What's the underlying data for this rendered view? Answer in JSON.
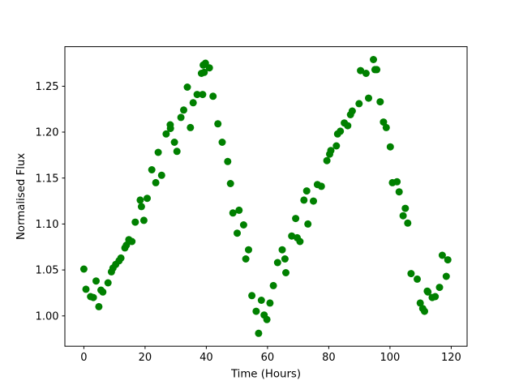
{
  "figure": {
    "background": "#ffffff",
    "plot_background": "#ffffff",
    "spine_color": "#000000"
  },
  "chart_data": {
    "type": "scatter",
    "title": "",
    "xlabel": "Time (Hours)",
    "ylabel": "Normalised Flux",
    "legend": null,
    "grid": false,
    "marker": "circle",
    "marker_color": "#008000",
    "marker_radius_px": 4.5,
    "xlim": [
      -6.2,
      125.2
    ],
    "ylim": [
      0.967,
      1.293
    ],
    "xticks": [
      0,
      20,
      40,
      60,
      80,
      100,
      120
    ],
    "yticks": [
      1.0,
      1.05,
      1.1,
      1.15,
      1.2,
      1.25
    ],
    "xtick_labels": [
      "0",
      "20",
      "40",
      "60",
      "80",
      "100",
      "120"
    ],
    "ytick_labels": [
      "1.00",
      "1.05",
      "1.10",
      "1.15",
      "1.20",
      "1.25"
    ],
    "points": [
      [
        0.0,
        1.051
      ],
      [
        0.7,
        1.029
      ],
      [
        2.2,
        1.021
      ],
      [
        3.1,
        1.02
      ],
      [
        4.0,
        1.038
      ],
      [
        4.9,
        1.01
      ],
      [
        5.6,
        1.028
      ],
      [
        6.2,
        1.026
      ],
      [
        7.9,
        1.036
      ],
      [
        9.0,
        1.048
      ],
      [
        9.5,
        1.052
      ],
      [
        10.4,
        1.056
      ],
      [
        11.5,
        1.06
      ],
      [
        12.1,
        1.063
      ],
      [
        13.4,
        1.074
      ],
      [
        13.9,
        1.077
      ],
      [
        14.7,
        1.083
      ],
      [
        15.7,
        1.081
      ],
      [
        16.8,
        1.102
      ],
      [
        18.4,
        1.126
      ],
      [
        18.8,
        1.119
      ],
      [
        19.6,
        1.104
      ],
      [
        20.7,
        1.128
      ],
      [
        22.2,
        1.159
      ],
      [
        23.5,
        1.145
      ],
      [
        24.3,
        1.178
      ],
      [
        25.4,
        1.153
      ],
      [
        26.9,
        1.198
      ],
      [
        28.2,
        1.208
      ],
      [
        28.3,
        1.204
      ],
      [
        29.6,
        1.189
      ],
      [
        30.4,
        1.179
      ],
      [
        31.7,
        1.216
      ],
      [
        32.6,
        1.224
      ],
      [
        33.8,
        1.249
      ],
      [
        34.8,
        1.205
      ],
      [
        35.7,
        1.232
      ],
      [
        37.0,
        1.241
      ],
      [
        38.4,
        1.264
      ],
      [
        38.8,
        1.241
      ],
      [
        39.0,
        1.273
      ],
      [
        39.3,
        1.265
      ],
      [
        39.7,
        1.275
      ],
      [
        41.0,
        1.27
      ],
      [
        42.2,
        1.239
      ],
      [
        43.8,
        1.209
      ],
      [
        45.2,
        1.189
      ],
      [
        47.0,
        1.168
      ],
      [
        47.9,
        1.144
      ],
      [
        48.7,
        1.112
      ],
      [
        50.1,
        1.09
      ],
      [
        50.7,
        1.115
      ],
      [
        52.2,
        1.099
      ],
      [
        52.9,
        1.062
      ],
      [
        53.8,
        1.072
      ],
      [
        54.9,
        1.022
      ],
      [
        56.3,
        1.005
      ],
      [
        57.1,
        0.981
      ],
      [
        58.0,
        1.017
      ],
      [
        58.9,
        1.001
      ],
      [
        59.8,
        0.996
      ],
      [
        60.8,
        1.014
      ],
      [
        61.9,
        1.033
      ],
      [
        63.3,
        1.058
      ],
      [
        64.8,
        1.072
      ],
      [
        65.7,
        1.062
      ],
      [
        66.0,
        1.047
      ],
      [
        67.9,
        1.087
      ],
      [
        69.2,
        1.106
      ],
      [
        69.7,
        1.085
      ],
      [
        70.6,
        1.081
      ],
      [
        71.9,
        1.126
      ],
      [
        72.8,
        1.136
      ],
      [
        73.2,
        1.1
      ],
      [
        75.0,
        1.125
      ],
      [
        76.3,
        1.143
      ],
      [
        77.6,
        1.141
      ],
      [
        79.4,
        1.169
      ],
      [
        80.3,
        1.176
      ],
      [
        80.7,
        1.18
      ],
      [
        82.5,
        1.185
      ],
      [
        82.9,
        1.198
      ],
      [
        83.8,
        1.201
      ],
      [
        85.1,
        1.21
      ],
      [
        86.2,
        1.207
      ],
      [
        87.1,
        1.219
      ],
      [
        87.7,
        1.223
      ],
      [
        89.9,
        1.231
      ],
      [
        90.4,
        1.267
      ],
      [
        92.2,
        1.264
      ],
      [
        93.0,
        1.237
      ],
      [
        94.6,
        1.279
      ],
      [
        95.1,
        1.268
      ],
      [
        95.7,
        1.268
      ],
      [
        96.8,
        1.233
      ],
      [
        97.9,
        1.211
      ],
      [
        98.8,
        1.205
      ],
      [
        100.1,
        1.184
      ],
      [
        100.8,
        1.145
      ],
      [
        102.3,
        1.146
      ],
      [
        103.0,
        1.135
      ],
      [
        104.3,
        1.109
      ],
      [
        105.0,
        1.117
      ],
      [
        105.8,
        1.101
      ],
      [
        106.9,
        1.046
      ],
      [
        108.9,
        1.04
      ],
      [
        109.9,
        1.014
      ],
      [
        110.7,
        1.008
      ],
      [
        111.3,
        1.005
      ],
      [
        112.2,
        1.027
      ],
      [
        112.4,
        1.026
      ],
      [
        113.8,
        1.02
      ],
      [
        114.8,
        1.021
      ],
      [
        116.2,
        1.031
      ],
      [
        117.1,
        1.066
      ],
      [
        118.4,
        1.043
      ],
      [
        118.9,
        1.061
      ]
    ]
  }
}
